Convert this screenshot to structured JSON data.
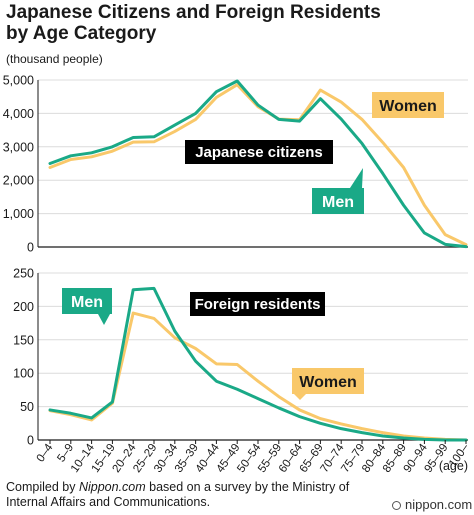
{
  "title_line1": "Japanese Citizens and Foreign Residents",
  "title_line2": "by Age Category",
  "unit_label": "(thousand people)",
  "footer": {
    "pre": "Compiled by ",
    "source": "Nippon.com",
    "post": " based on a survey by the Ministry of Internal Affairs and Communications."
  },
  "brand": "nippon.com",
  "colors": {
    "men": "#1aa987",
    "women": "#f9c86a",
    "grid": "#dcdcdc",
    "bg": "#ffffff",
    "axis": "#1a1a1a",
    "label_box": "#000000"
  },
  "chart_data": [
    {
      "type": "line",
      "panel_label": "Japanese citizens",
      "ylim": [
        0,
        5000
      ],
      "yticks": [
        0,
        1000,
        2000,
        3000,
        4000,
        5000
      ],
      "ytick_labels": [
        "0",
        "1,000",
        "2,000",
        "3,000",
        "4,000",
        "5,000"
      ],
      "grid": true,
      "series": [
        {
          "name": "Men",
          "values": [
            2500,
            2730,
            2820,
            3000,
            3280,
            3300,
            3650,
            4000,
            4650,
            4970,
            4250,
            3820,
            3770,
            4440,
            3830,
            3100,
            2200,
            1250,
            420,
            80,
            10
          ]
        },
        {
          "name": "Women",
          "values": [
            2380,
            2620,
            2700,
            2870,
            3140,
            3150,
            3460,
            3820,
            4480,
            4860,
            4200,
            3830,
            3810,
            4700,
            4340,
            3820,
            3130,
            2380,
            1250,
            370,
            70
          ]
        }
      ]
    },
    {
      "type": "line",
      "panel_label": "Foreign residents",
      "ylim": [
        0,
        250
      ],
      "yticks": [
        0,
        50,
        100,
        150,
        200,
        250
      ],
      "ytick_labels": [
        "0",
        "50",
        "100",
        "150",
        "200",
        "250"
      ],
      "grid": true,
      "series": [
        {
          "name": "Men",
          "values": [
            45,
            40,
            33,
            57,
            225,
            227,
            163,
            118,
            88,
            76,
            62,
            48,
            35,
            25,
            17,
            11,
            6,
            3,
            1,
            0,
            0
          ]
        },
        {
          "name": "Women",
          "values": [
            44,
            38,
            30,
            55,
            190,
            182,
            153,
            137,
            114,
            113,
            88,
            65,
            45,
            32,
            24,
            17,
            11,
            6,
            3,
            1,
            0
          ]
        }
      ]
    }
  ],
  "x_categories": [
    "0–4",
    "5–9",
    "10–14",
    "15–19",
    "20–24",
    "25–29",
    "30–34",
    "35–39",
    "40–44",
    "45–49",
    "50–54",
    "55–59",
    "60–64",
    "65–69",
    "70–74",
    "75–79",
    "80–84",
    "85–89",
    "90–94",
    "95–99",
    "100–"
  ],
  "x_unit": "(age)"
}
